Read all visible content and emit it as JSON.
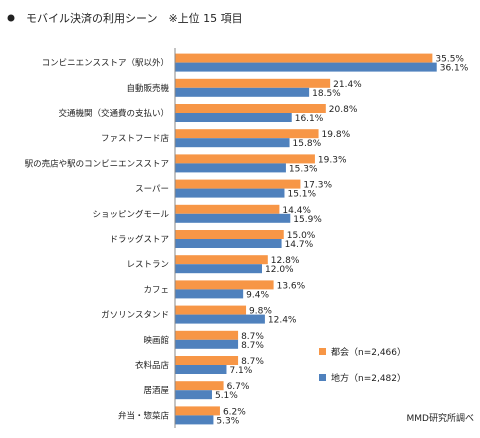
{
  "chart_data": {
    "type": "bar",
    "orientation": "horizontal",
    "title": "モバイル決済の利用シーン　※上位 15 項目",
    "categories": [
      "コンビニエンスストア（駅以外）",
      "自動販売機",
      "交通機関（交通費の支払い）",
      "ファストフード店",
      "駅の売店や駅のコンビニエンスストア",
      "スーパー",
      "ショッピングモール",
      "ドラッグストア",
      "レストラン",
      "カフェ",
      "ガソリンスタンド",
      "映画館",
      "衣料品店",
      "居酒屋",
      "弁当・惣菜店"
    ],
    "series": [
      {
        "name": "都会（n=2,466）",
        "color": "#f79646",
        "values": [
          35.5,
          21.4,
          20.8,
          19.8,
          19.3,
          17.3,
          14.4,
          15.0,
          12.8,
          13.6,
          9.8,
          8.7,
          8.7,
          6.7,
          6.2
        ],
        "labels": [
          "35.5%",
          "21.4%",
          "20.8%",
          "19.8%",
          "19.3%",
          "17.3%",
          "14.4%",
          "15.0%",
          "12.8%",
          "13.6%",
          "9.8%",
          "8.7%",
          "8.7%",
          "6.7%",
          "6.2%"
        ]
      },
      {
        "name": "地方（n=2,482）",
        "color": "#4f81bd",
        "values": [
          36.1,
          18.5,
          16.1,
          15.8,
          15.3,
          15.1,
          15.9,
          14.7,
          12.0,
          9.4,
          12.4,
          8.7,
          7.1,
          5.1,
          5.3
        ],
        "labels": [
          "36.1%",
          "18.5%",
          "16.1%",
          "15.8%",
          "15.3%",
          "15.1%",
          "15.9%",
          "14.7%",
          "12.0%",
          "9.4%",
          "12.4%",
          "8.7%",
          "7.1%",
          "5.1%",
          "5.3%"
        ]
      }
    ],
    "xlim": [
      0,
      40
    ],
    "grid": false,
    "legend_position": "bottom-right",
    "source": "MMD研究所調べ"
  }
}
